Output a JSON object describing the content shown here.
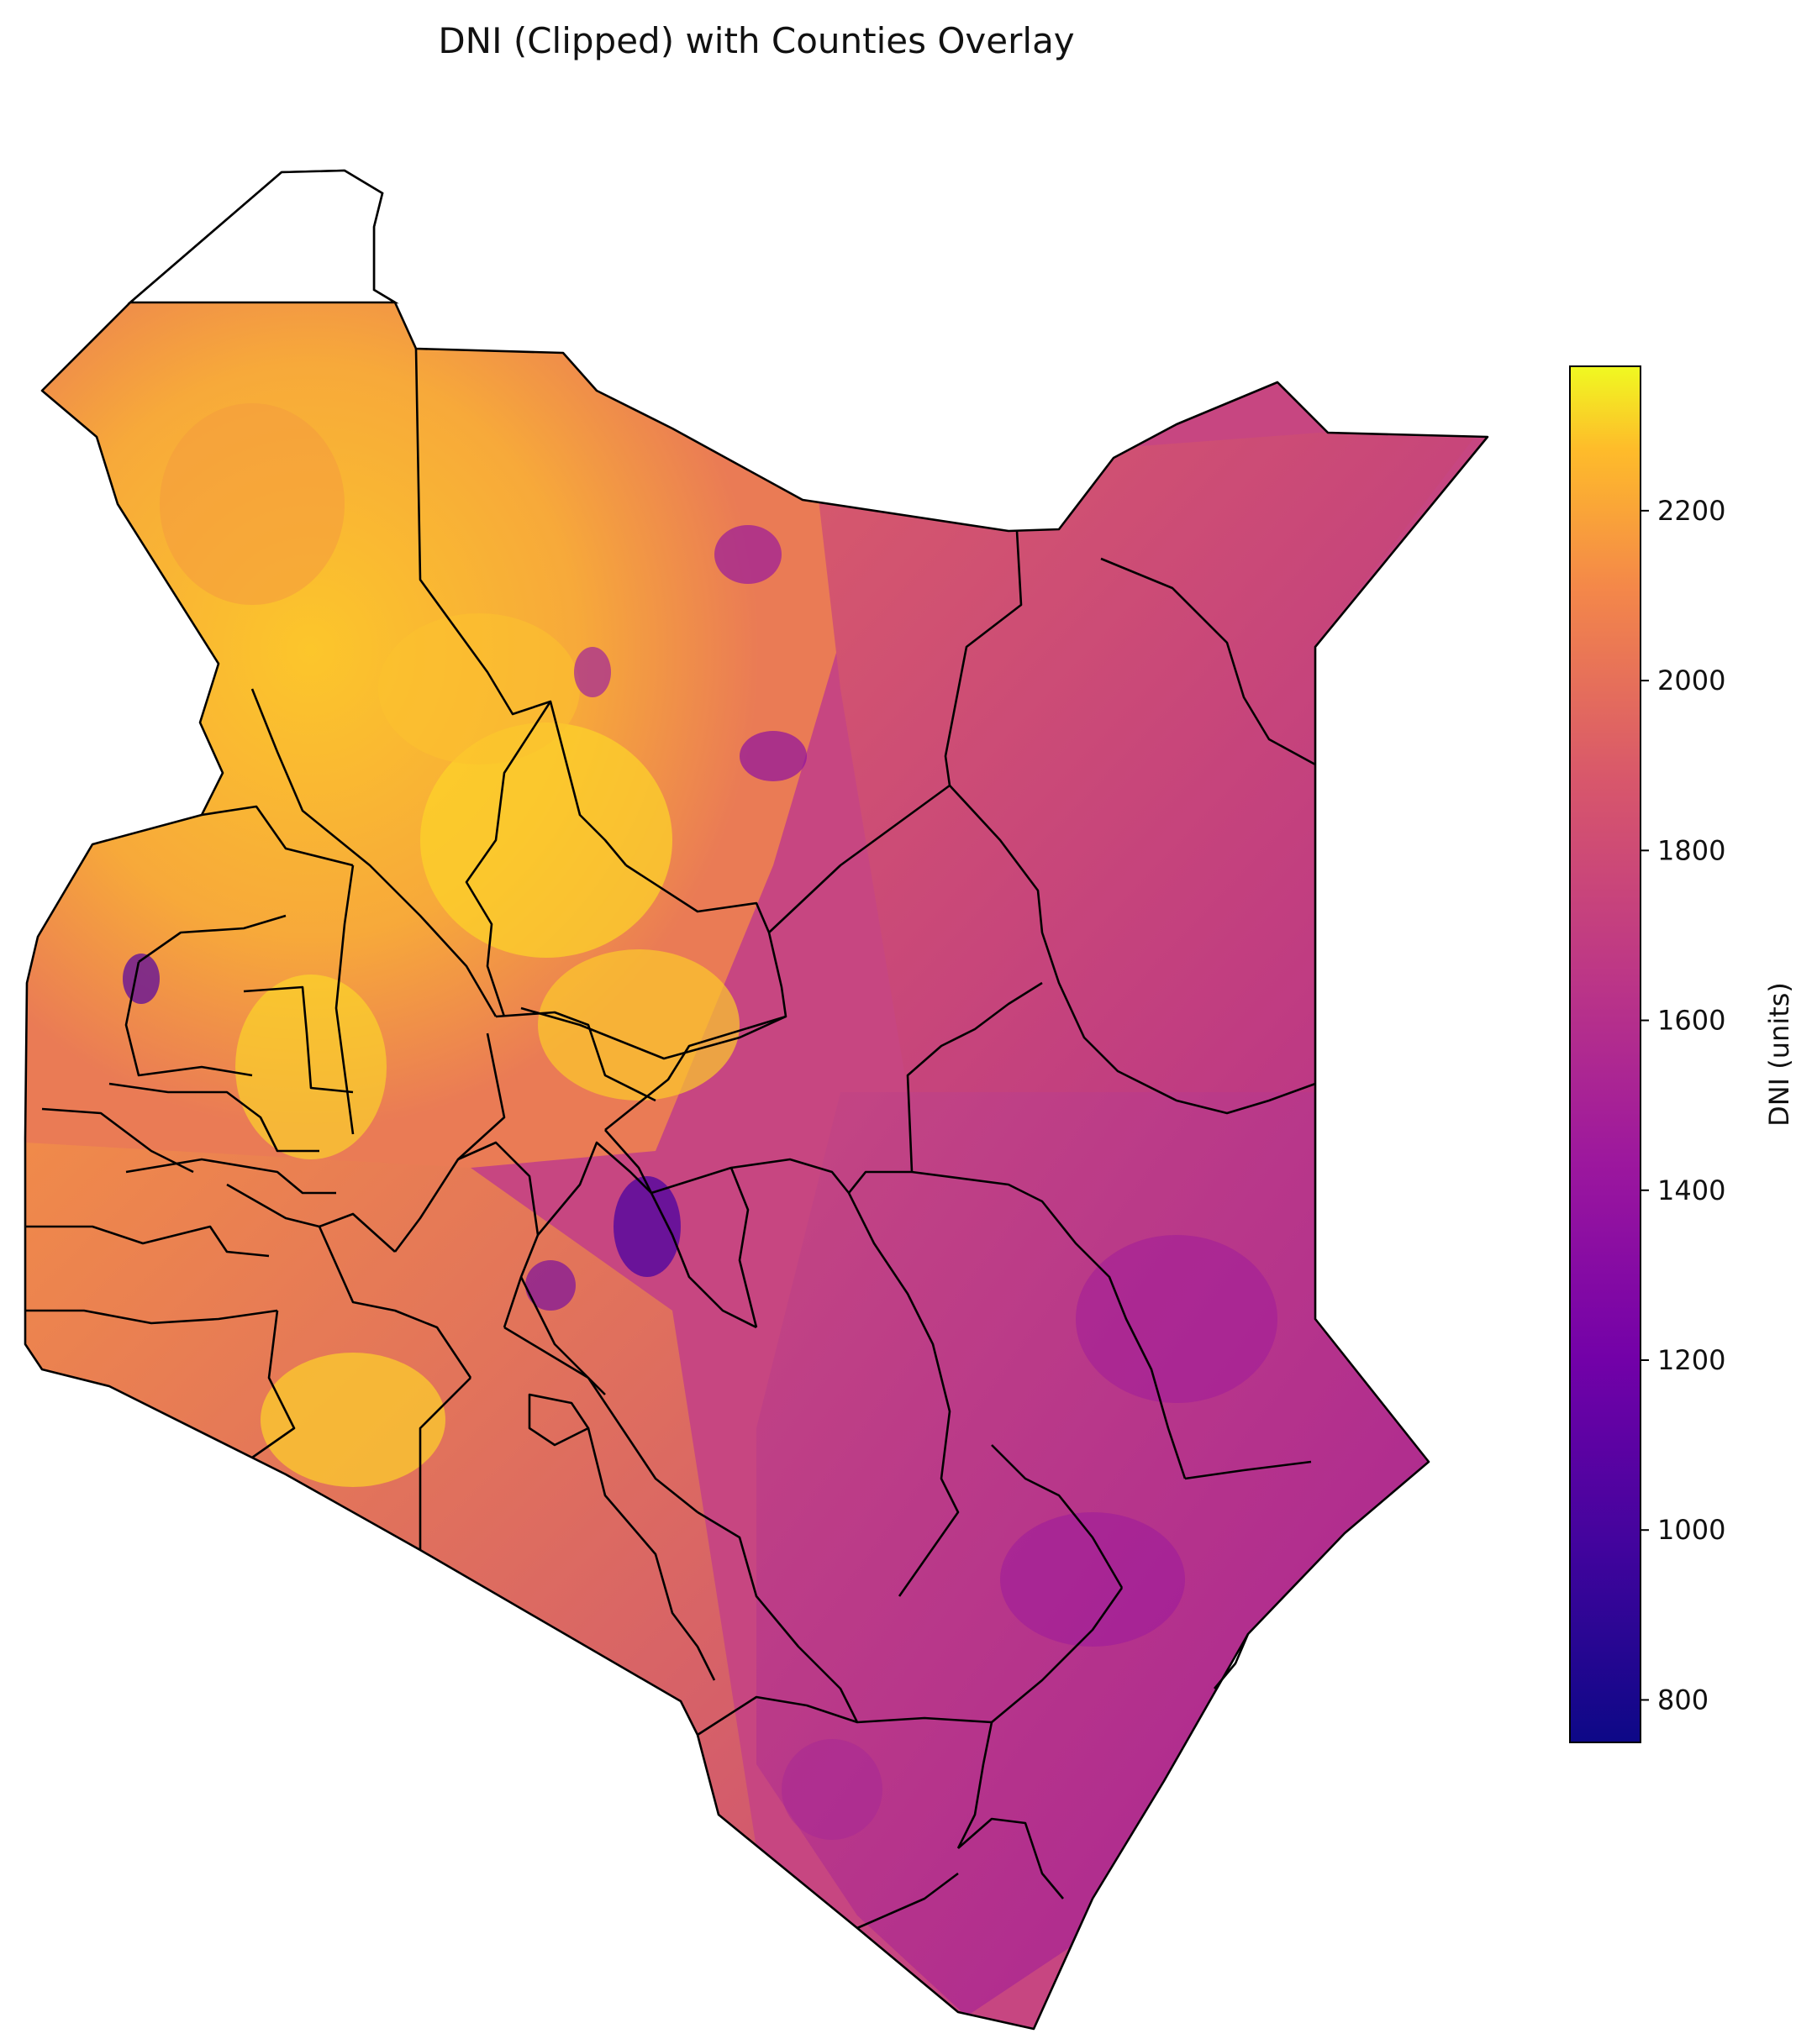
{
  "figure": {
    "title": "DNI (Clipped) with Counties Overlay"
  },
  "colorbar": {
    "label": "DNI (units)",
    "colormap": "plasma",
    "min": 750,
    "max": 2370,
    "ticks": [
      800,
      1000,
      1200,
      1400,
      1600,
      1800,
      2000,
      2200
    ],
    "tick_labels": [
      "800",
      "1000",
      "1200",
      "1400",
      "1600",
      "1800",
      "2000",
      "2200"
    ],
    "stops": [
      "#0d0887",
      "#5302a3",
      "#8b0aa5",
      "#b83289",
      "#db5c68",
      "#f48849",
      "#febc2a",
      "#f0f921"
    ]
  },
  "map": {
    "border_color": "#000000",
    "no_data_color": "#ffffff"
  }
}
